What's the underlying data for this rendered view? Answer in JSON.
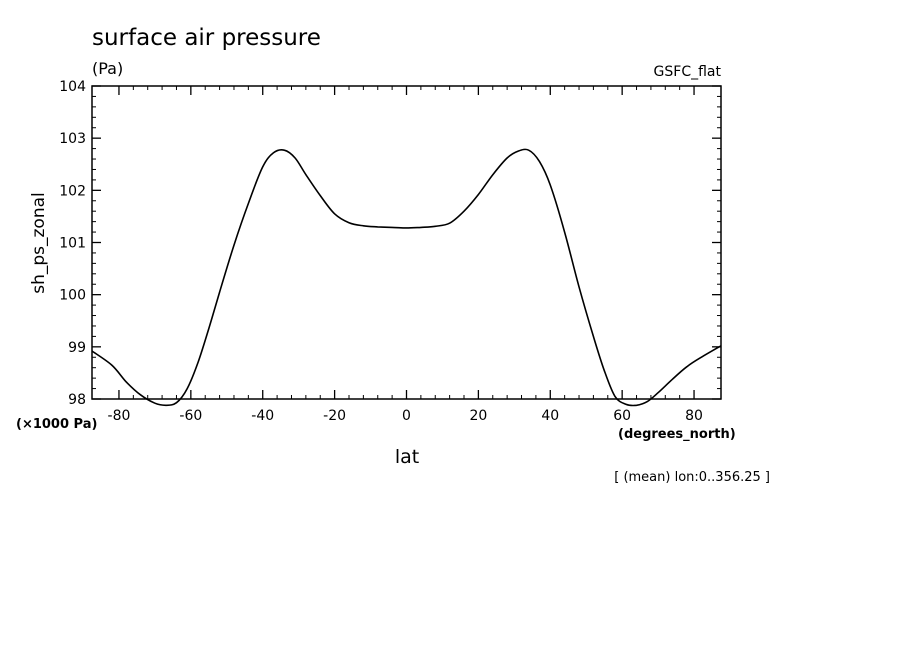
{
  "chart_data": {
    "type": "line",
    "title": "surface air pressure",
    "units": "(Pa)",
    "source_label": "GSFC_flat",
    "xlabel": "lat",
    "ylabel": "sh_ps_zonal",
    "y_scale_note": "(×1000 Pa)",
    "x_units_note": "(degrees_north)",
    "footnote": "[ (mean) lon:0..356.25 ]",
    "xlim": [
      -87.5,
      87.5
    ],
    "ylim": [
      98,
      104
    ],
    "x_ticks": [
      -80,
      -60,
      -40,
      -20,
      0,
      20,
      40,
      60,
      80
    ],
    "y_ticks": [
      98,
      99,
      100,
      101,
      102,
      103,
      104
    ],
    "grid": false,
    "series": [
      {
        "x": [
          -87.5,
          -82,
          -78,
          -74,
          -70,
          -67,
          -64,
          -61,
          -58,
          -55,
          -52,
          -48,
          -44,
          -40,
          -37,
          -34,
          -31,
          -28,
          -24,
          -20,
          -16,
          -12,
          -8,
          -4,
          0,
          4,
          8,
          12,
          16,
          20,
          24,
          28,
          31,
          34,
          37,
          40,
          44,
          48,
          52,
          55,
          58,
          61,
          64,
          67,
          70,
          74,
          78,
          82,
          87.5
        ],
        "y": [
          98.92,
          98.65,
          98.33,
          98.08,
          97.92,
          97.88,
          97.93,
          98.2,
          98.7,
          99.35,
          100.05,
          100.95,
          101.75,
          102.45,
          102.72,
          102.77,
          102.62,
          102.3,
          101.9,
          101.55,
          101.38,
          101.32,
          101.3,
          101.29,
          101.28,
          101.29,
          101.31,
          101.37,
          101.6,
          101.92,
          102.3,
          102.62,
          102.75,
          102.77,
          102.55,
          102.1,
          101.2,
          100.15,
          99.2,
          98.55,
          98.05,
          97.9,
          97.88,
          97.95,
          98.12,
          98.38,
          98.62,
          98.8,
          99.02
        ]
      }
    ]
  }
}
